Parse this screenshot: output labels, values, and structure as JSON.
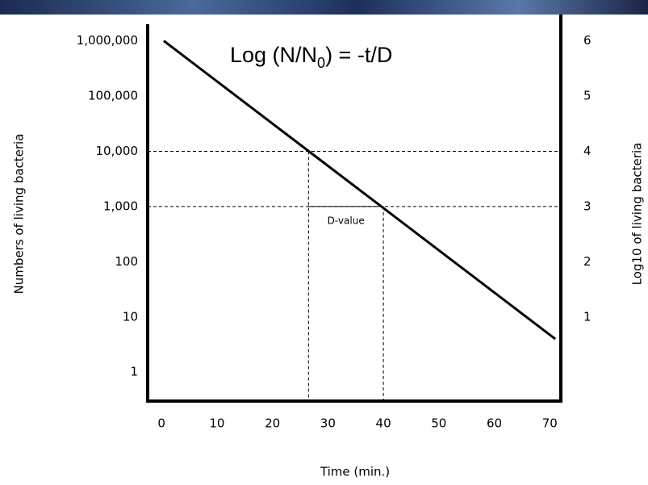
{
  "chart_data": {
    "type": "line",
    "formula": {
      "text": "Log (N/N",
      "sub": "0",
      "rest": ")  = -t/D"
    },
    "xlabel": "Time (min.)",
    "ylabel": "Numbers of living bacteria",
    "y2label": "Log10 of living bacteria",
    "annotation": "D-value",
    "x": [
      0.4,
      71
    ],
    "series": [
      {
        "color": "#000000",
        "values": [
          1000000,
          4
        ]
      }
    ],
    "xlim": [
      -2.5,
      72
    ],
    "xticks": [
      0,
      10,
      20,
      30,
      40,
      50,
      60,
      70
    ],
    "ylog": true,
    "ylim": [
      0.3,
      2000000
    ],
    "yticks": [
      {
        "value": 1000000,
        "label": "1,000,000"
      },
      {
        "value": 100000,
        "label": "100,000"
      },
      {
        "value": 10000,
        "label": "10,000"
      },
      {
        "value": 1000,
        "label": "1,000"
      },
      100,
      10,
      1
    ],
    "y2lim": [
      -0.52,
      6.3
    ],
    "y2ticks": [
      6,
      5,
      4,
      3,
      2,
      1
    ],
    "hlines": [
      10000,
      1000
    ],
    "vlines": [
      26.5,
      40
    ],
    "grid": false
  }
}
